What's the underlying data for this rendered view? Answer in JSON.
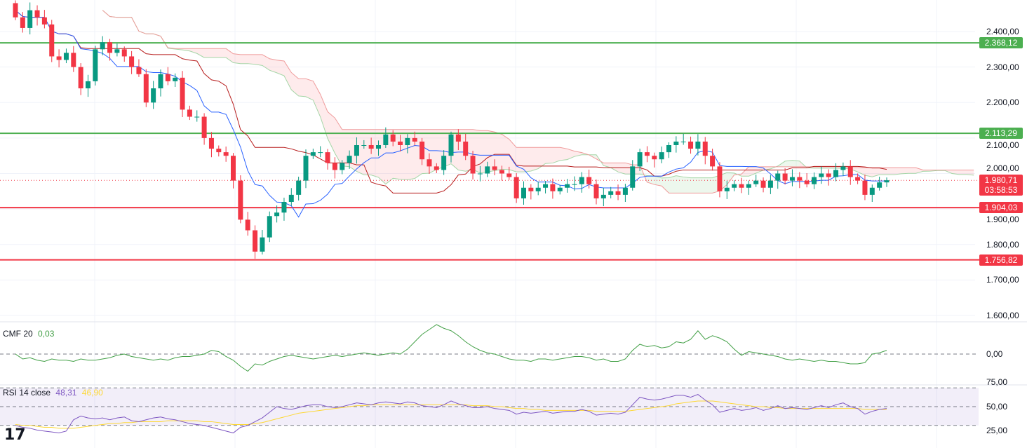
{
  "chart_data": {
    "type": "candlestick",
    "instrument_hint": "",
    "price_axis": {
      "ticks": [
        2400,
        2300,
        2200,
        2100,
        2000,
        1900,
        1800,
        1700,
        1600
      ],
      "tick_labels": [
        "2.400,00",
        "2.300,00",
        "2.200,00",
        "2.100,00",
        "2.000,00",
        "1.900,00",
        "1.800,00",
        "1.700,00",
        "1.600,00"
      ],
      "range": [
        1600,
        2490
      ]
    },
    "closes": [
      2440,
      2410,
      2460,
      2440,
      2420,
      2330,
      2320,
      2340,
      2300,
      2240,
      2260,
      2350,
      2370,
      2340,
      2350,
      2330,
      2300,
      2280,
      2200,
      2240,
      2280,
      2260,
      2270,
      2180,
      2160,
      2160,
      2100,
      2070,
      2060,
      2050,
      1980,
      1870,
      1840,
      1780,
      1820,
      1880,
      1890,
      1920,
      1940,
      1980,
      2050,
      2060,
      2060,
      2030,
      2010,
      2030,
      2050,
      2080,
      2080,
      2070,
      2080,
      2110,
      2090,
      2080,
      2100,
      2090,
      2040,
      2020,
      2010,
      2050,
      2110,
      2090,
      2050,
      2000,
      2000,
      2020,
      2010,
      2000,
      1990,
      1930,
      1960,
      1950,
      1960,
      1970,
      1950,
      1960,
      1970,
      1970,
      1990,
      1970,
      1930,
      1940,
      1950,
      1940,
      1960,
      2020,
      2060,
      2050,
      2040,
      2060,
      2080,
      2090,
      2090,
      2070,
      2090,
      2050,
      2020,
      1950,
      1960,
      1970,
      1960,
      1970,
      1980,
      1960,
      1980,
      2000,
      1980,
      1990,
      1980,
      1970,
      1990,
      2000,
      1990,
      2010,
      2020,
      1990,
      1980,
      1940,
      1960,
      1975,
      1981
    ],
    "levels": [
      {
        "value": 2368.12,
        "label": "2.368,12",
        "color": "#4caf50"
      },
      {
        "value": 2113.29,
        "label": "2.113,29",
        "color": "#4caf50"
      },
      {
        "value": 1904.03,
        "label": "1.904,03",
        "color": "#f23645"
      },
      {
        "value": 1756.82,
        "label": "1.756,82",
        "color": "#f23645"
      }
    ],
    "last_price": {
      "value": 1980.71,
      "label": "1.980,71",
      "countdown": "03:58:53",
      "color": "#f23645"
    },
    "colors": {
      "up": "#089981",
      "down": "#f23645",
      "conversion": "#2962ff",
      "base": "#b71c1c"
    },
    "cmf": {
      "title": "CMF 20",
      "value": "0,03",
      "color": "#43a047",
      "zero_label": "0,00",
      "values": [
        0,
        -0.04,
        -0.03,
        -0.05,
        -0.06,
        -0.04,
        -0.05,
        -0.05,
        -0.06,
        -0.04,
        -0.05,
        -0.05,
        -0.04,
        -0.03,
        -0.01,
        0,
        -0.02,
        -0.03,
        -0.04,
        -0.05,
        -0.04,
        -0.05,
        -0.03,
        -0.02,
        -0.02,
        -0.01,
        0,
        0.03,
        0.02,
        -0.02,
        -0.05,
        -0.1,
        -0.14,
        -0.08,
        -0.09,
        -0.06,
        -0.04,
        -0.02,
        -0.01,
        -0.02,
        -0.03,
        -0.04,
        -0.03,
        -0.02,
        -0.01,
        -0.02,
        -0.01,
        0,
        0.01,
        0,
        -0.01,
        0,
        0.01,
        0,
        0.04,
        0.1,
        0.16,
        0.2,
        0.24,
        0.21,
        0.19,
        0.15,
        0.1,
        0.06,
        0.03,
        0.01,
        0,
        -0.02,
        -0.04,
        -0.05,
        -0.05,
        -0.06,
        -0.04,
        -0.04,
        -0.05,
        -0.04,
        -0.03,
        -0.02,
        -0.02,
        -0.03,
        -0.05,
        -0.04,
        -0.06,
        -0.06,
        -0.04,
        0.03,
        0.08,
        0.06,
        0.07,
        0.05,
        0.06,
        0.1,
        0.09,
        0.12,
        0.19,
        0.12,
        0.15,
        0.13,
        0.1,
        0.04,
        -0.01,
        0.02,
        0.01,
        0,
        -0.01,
        -0.02,
        -0.04,
        -0.05,
        -0.04,
        -0.05,
        -0.06,
        -0.05,
        -0.06,
        -0.06,
        -0.07,
        -0.08,
        -0.08,
        -0.07,
        0,
        0.01,
        0.03
      ]
    },
    "rsi": {
      "title": "RSI 14 close",
      "value": "48,31",
      "ma_value": "46,90",
      "color": "#7e57c2",
      "ma_color": "#fdd835",
      "ticks": [
        "75,00",
        "50,00",
        "25,00"
      ],
      "values": [
        30,
        28,
        27,
        25,
        24,
        23,
        22,
        24,
        36,
        40,
        38,
        37,
        38,
        36,
        38,
        39,
        35,
        34,
        36,
        38,
        39,
        37,
        36,
        34,
        32,
        31,
        30,
        28,
        26,
        24,
        22,
        28,
        30,
        34,
        38,
        44,
        50,
        48,
        47,
        49,
        51,
        52,
        52,
        50,
        49,
        50,
        52,
        54,
        53,
        52,
        54,
        55,
        54,
        53,
        55,
        54,
        51,
        50,
        49,
        52,
        56,
        53,
        51,
        49,
        49,
        50,
        48,
        47,
        46,
        42,
        44,
        43,
        44,
        45,
        43,
        44,
        45,
        45,
        47,
        45,
        41,
        42,
        43,
        42,
        44,
        52,
        60,
        58,
        57,
        58,
        60,
        62,
        62,
        60,
        63,
        57,
        52,
        44,
        46,
        48,
        46,
        47,
        49,
        46,
        48,
        51,
        48,
        49,
        48,
        47,
        49,
        51,
        49,
        52,
        54,
        50,
        48,
        42,
        45,
        47,
        48
      ],
      "ma": [
        31,
        30,
        30,
        29,
        28,
        28,
        27,
        27,
        27,
        28,
        29,
        30,
        31,
        32,
        32,
        33,
        33,
        34,
        34,
        34,
        34,
        35,
        35,
        35,
        35,
        35,
        34,
        34,
        33,
        32,
        31,
        31,
        31,
        32,
        33,
        35,
        37,
        39,
        41,
        43,
        44,
        45,
        46,
        47,
        48,
        49,
        50,
        51,
        51,
        52,
        52,
        52,
        52,
        52,
        52,
        52,
        52,
        52,
        52,
        52,
        52,
        52,
        52,
        51,
        51,
        51,
        50,
        50,
        49,
        48,
        48,
        47,
        47,
        46,
        46,
        46,
        46,
        46,
        46,
        46,
        45,
        45,
        45,
        45,
        45,
        46,
        47,
        48,
        49,
        50,
        51,
        53,
        54,
        55,
        56,
        56,
        56,
        55,
        54,
        53,
        52,
        51,
        50,
        50,
        49,
        49,
        48,
        48,
        48,
        48,
        48,
        48,
        48,
        48,
        48,
        48,
        48,
        47,
        47,
        47,
        47
      ]
    }
  }
}
